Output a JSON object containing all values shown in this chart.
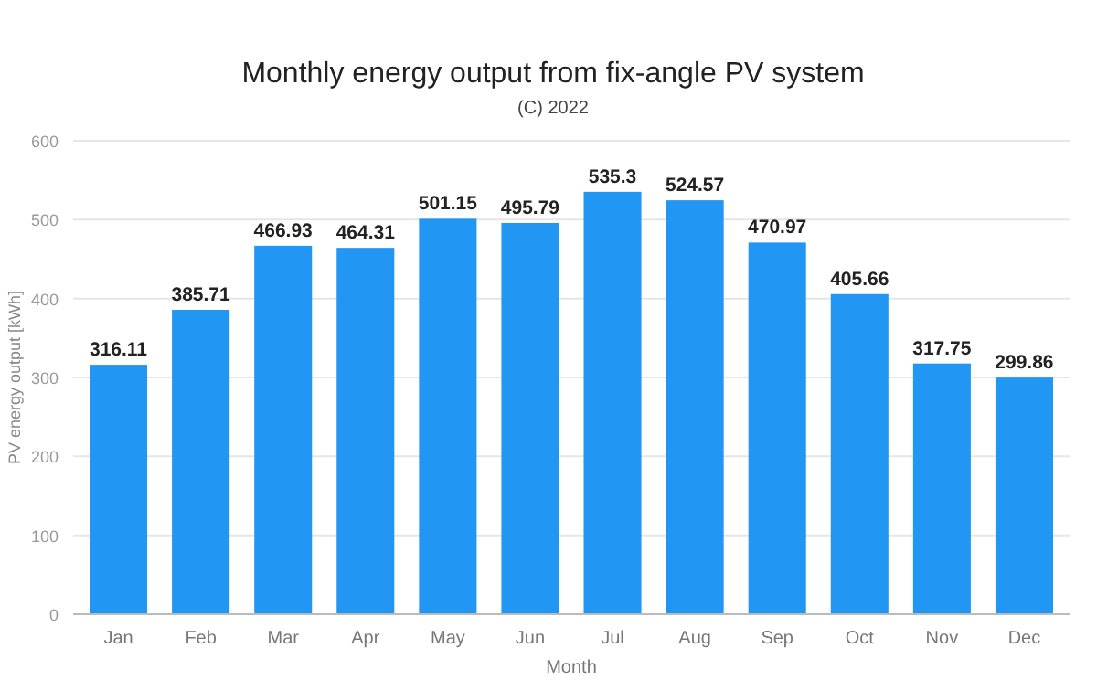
{
  "chart_data": {
    "type": "bar",
    "title": "Monthly energy output from fix-angle PV system",
    "subtitle": "(C) 2022",
    "xlabel": "Month",
    "ylabel": "PV energy output [kWh]",
    "categories": [
      "Jan",
      "Feb",
      "Mar",
      "Apr",
      "May",
      "Jun",
      "Jul",
      "Aug",
      "Sep",
      "Oct",
      "Nov",
      "Dec"
    ],
    "values": [
      316.11,
      385.71,
      466.93,
      464.31,
      501.15,
      495.79,
      535.3,
      524.57,
      470.97,
      405.66,
      317.75,
      299.86
    ],
    "color": "#2196f3",
    "ylim": [
      0,
      600
    ],
    "yticks": [
      0,
      100,
      200,
      300,
      400,
      500,
      600
    ],
    "grid": "y",
    "data_labels": true
  }
}
